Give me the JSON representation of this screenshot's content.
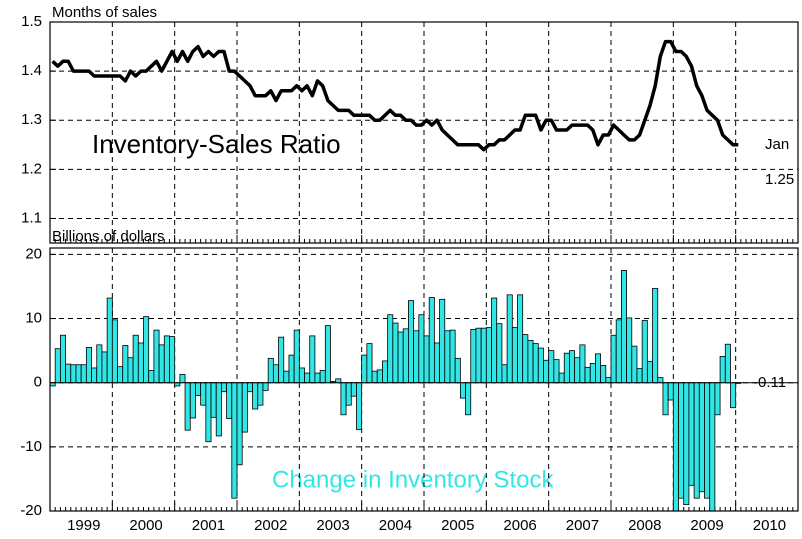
{
  "chart_data": [
    {
      "type": "line",
      "ylabel": "Months of sales",
      "color": "#000000",
      "grid": true,
      "ylim": [
        1.05,
        1.5
      ],
      "yticks": [
        1.1,
        1.2,
        1.3,
        1.4,
        1.5
      ],
      "annotations": [
        "Inventory-Sales Ratio",
        "Jan",
        "1.25"
      ],
      "values": [
        1.42,
        1.41,
        1.42,
        1.42,
        1.4,
        1.4,
        1.4,
        1.4,
        1.39,
        1.39,
        1.39,
        1.39,
        1.39,
        1.39,
        1.38,
        1.4,
        1.39,
        1.4,
        1.4,
        1.41,
        1.42,
        1.4,
        1.42,
        1.44,
        1.42,
        1.44,
        1.42,
        1.44,
        1.45,
        1.43,
        1.44,
        1.43,
        1.44,
        1.44,
        1.4,
        1.4,
        1.39,
        1.38,
        1.37,
        1.35,
        1.35,
        1.35,
        1.36,
        1.34,
        1.36,
        1.36,
        1.36,
        1.37,
        1.36,
        1.37,
        1.35,
        1.38,
        1.37,
        1.34,
        1.33,
        1.32,
        1.32,
        1.32,
        1.31,
        1.31,
        1.31,
        1.31,
        1.3,
        1.3,
        1.31,
        1.32,
        1.31,
        1.31,
        1.3,
        1.3,
        1.29,
        1.29,
        1.3,
        1.29,
        1.3,
        1.28,
        1.27,
        1.26,
        1.25,
        1.25,
        1.25,
        1.25,
        1.25,
        1.24,
        1.25,
        1.25,
        1.26,
        1.26,
        1.27,
        1.28,
        1.28,
        1.31,
        1.31,
        1.31,
        1.28,
        1.3,
        1.3,
        1.28,
        1.28,
        1.28,
        1.29,
        1.29,
        1.29,
        1.29,
        1.28,
        1.25,
        1.27,
        1.27,
        1.29,
        1.28,
        1.27,
        1.26,
        1.26,
        1.27,
        1.3,
        1.33,
        1.37,
        1.43,
        1.46,
        1.46,
        1.44,
        1.44,
        1.43,
        1.41,
        1.37,
        1.35,
        1.32,
        1.31,
        1.3,
        1.27,
        1.26,
        1.25,
        1.25,
        null,
        null,
        null,
        null,
        null,
        null,
        null,
        null,
        null,
        null,
        null
      ]
    },
    {
      "type": "bar",
      "ylabel": "Billions of dollars",
      "color": "#33e6e6",
      "grid": true,
      "ylim": [
        -20,
        21
      ],
      "yticks": [
        -20,
        -10,
        0,
        10,
        20
      ],
      "annotations": [
        "Change in Inventory Stock",
        "-0.11"
      ],
      "categories": [
        null,
        null,
        null,
        null,
        null,
        null,
        "1999",
        null,
        null,
        null,
        null,
        null,
        null,
        null,
        null,
        null,
        null,
        null,
        "2000",
        null,
        null,
        null,
        null,
        null,
        null,
        null,
        null,
        null,
        null,
        null,
        "2001",
        null,
        null,
        null,
        null,
        null,
        null,
        null,
        null,
        null,
        null,
        null,
        "2002",
        null,
        null,
        null,
        null,
        null,
        null,
        null,
        null,
        null,
        null,
        null,
        "2003",
        null,
        null,
        null,
        null,
        null,
        null,
        null,
        null,
        null,
        null,
        null,
        "2004",
        null,
        null,
        null,
        null,
        null,
        null,
        null,
        null,
        null,
        null,
        null,
        "2005",
        null,
        null,
        null,
        null,
        null,
        null,
        null,
        null,
        null,
        null,
        null,
        "2006",
        null,
        null,
        null,
        null,
        null,
        null,
        null,
        null,
        null,
        null,
        null,
        "2007",
        null,
        null,
        null,
        null,
        null,
        null,
        null,
        null,
        null,
        null,
        null,
        "2008",
        null,
        null,
        null,
        null,
        null,
        null,
        null,
        null,
        null,
        null,
        null,
        "2009",
        null,
        null,
        null,
        null,
        null,
        null,
        null,
        null,
        null,
        null,
        null,
        "2010",
        null,
        null,
        null,
        null,
        null
      ],
      "values": [
        -0.5,
        5.3,
        7.4,
        2.9,
        2.8,
        2.8,
        2.8,
        5.5,
        2.3,
        5.9,
        4.8,
        13.2,
        9.8,
        2.5,
        5.8,
        3.9,
        7.4,
        6.2,
        10.3,
        1.9,
        8.2,
        5.9,
        7.3,
        7.2,
        -0.5,
        1.3,
        -7.4,
        -5.5,
        -2,
        -3.5,
        -9.2,
        -5.4,
        -8.3,
        -1.4,
        -5.6,
        -18,
        -12.8,
        -7.7,
        -1.4,
        -4.1,
        -3.5,
        -1.2,
        3.8,
        2.8,
        7.1,
        1.8,
        4.3,
        8.2,
        2.3,
        1.5,
        7.3,
        1.5,
        1.9,
        8.9,
        0.2,
        0.6,
        -5,
        -3.5,
        -2.1,
        -7.3,
        4.3,
        6.1,
        1.8,
        2.0,
        3.4,
        10.6,
        9.3,
        7.9,
        8.4,
        12.8,
        8.1,
        10.6,
        7.3,
        13.3,
        6.2,
        13.0,
        8.1,
        8.2,
        3.8,
        -2.4,
        -5,
        8.3,
        8.5,
        8.5,
        8.6,
        13.2,
        9.2,
        2.8,
        13.7,
        8.6,
        13.7,
        7.5,
        6.6,
        6.1,
        5.4,
        3.5,
        5.0,
        3.6,
        1.5,
        4.6,
        5.0,
        3.9,
        5.9,
        2.4,
        3.0,
        4.5,
        2.7,
        0.8,
        7.4,
        9.8,
        17.5,
        10.1,
        5.7,
        2.2,
        9.7,
        3.3,
        14.7,
        0.8,
        -5,
        -2.7,
        -20,
        -18,
        -19,
        -16,
        -18,
        -17,
        -18,
        -20,
        -5,
        4.1,
        6.0,
        -3.9,
        -0.11,
        null,
        null,
        null,
        null,
        null,
        null,
        null,
        null,
        null,
        null,
        null
      ]
    }
  ]
}
